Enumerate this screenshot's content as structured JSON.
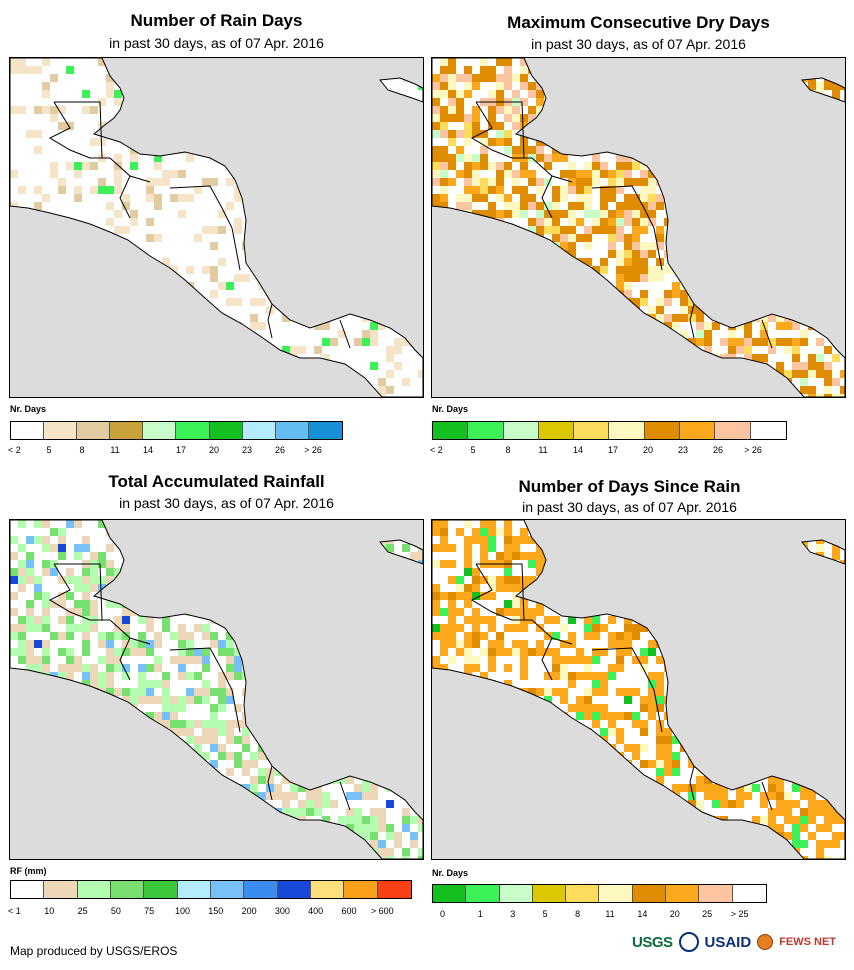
{
  "panels": [
    {
      "title": "Number of Rain Days",
      "subtitle": "in past 30 days, as of 07 Apr. 2016",
      "legend_title": "Nr. Days",
      "legend_colors": [
        "#ffffff",
        "#f5e4c8",
        "#e2cba1",
        "#c8a33c",
        "#c8fcc8",
        "#3cf058",
        "#14c020",
        "#b4ecfc",
        "#64bcf0",
        "#1890d8"
      ],
      "legend_labels": [
        "< 2",
        "5",
        "8",
        "11",
        "14",
        "17",
        "20",
        "23",
        "26",
        "> 26"
      ]
    },
    {
      "title": "Maximum Consecutive Dry Days",
      "subtitle": "in past 30 days, as of 07 Apr. 2016",
      "legend_title": "Nr. Days",
      "legend_colors": [
        "#14c020",
        "#3cf058",
        "#c8fcc8",
        "#dcc800",
        "#fcdc5c",
        "#fcf8c0",
        "#e08c00",
        "#fca81c",
        "#fcc4a0",
        "#ffffff"
      ],
      "legend_labels": [
        "< 2",
        "5",
        "8",
        "11",
        "14",
        "17",
        "20",
        "23",
        "26",
        "> 26"
      ]
    },
    {
      "title": "Total Accumulated Rainfall",
      "subtitle": "in past 30 days, as of 07 Apr. 2016",
      "legend_title": "RF (mm)",
      "legend_colors": [
        "#ffffff",
        "#ecd8b8",
        "#b4fcb0",
        "#78e070",
        "#3cc83c",
        "#b4ecfc",
        "#78c0f8",
        "#3c8cf0",
        "#1848d8",
        "#fce07c",
        "#fca01c",
        "#f84014"
      ],
      "legend_labels": [
        "< 1",
        "10",
        "25",
        "50",
        "75",
        "100",
        "150",
        "200",
        "300",
        "400",
        "600",
        "> 600"
      ]
    },
    {
      "title": "Number of Days Since Rain",
      "subtitle": "in past 30 days, as of 07 Apr. 2016",
      "legend_title": "Nr. Days",
      "legend_colors": [
        "#14c020",
        "#3cf058",
        "#c8fcc8",
        "#dcc800",
        "#fcdc5c",
        "#fcf8c0",
        "#e08c00",
        "#fca81c",
        "#fcc4a0",
        "#ffffff"
      ],
      "legend_labels": [
        "0",
        "1",
        "3",
        "5",
        "8",
        "11",
        "14",
        "20",
        "25",
        "> 25"
      ]
    }
  ],
  "footer": {
    "credit": "Map produced by USGS/EROS",
    "logos": [
      "USGS",
      "USAID",
      "FEWS NET"
    ]
  },
  "colors": {
    "ocean": "#dcdcdc",
    "land": "#ffffff",
    "border": "#000000"
  }
}
